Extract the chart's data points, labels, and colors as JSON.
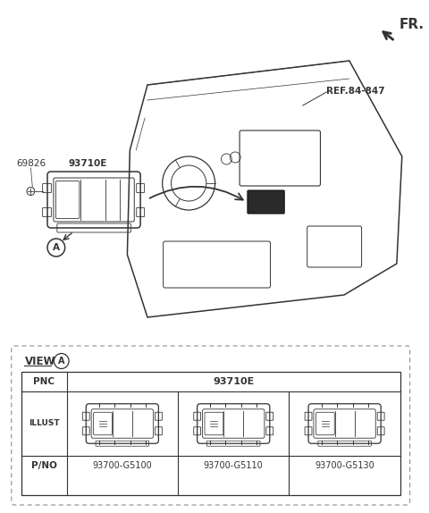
{
  "bg_color": "#ffffff",
  "line_color": "#333333",
  "fig_width": 4.8,
  "fig_height": 5.74,
  "fr_label": "FR.",
  "ref_label": "REF.84-847",
  "part_69826": "69826",
  "part_93710E": "93710E",
  "view_label": "VIEW",
  "table_pnc": "PNC",
  "table_pnc_val": "93710E",
  "table_illust": "ILLUST",
  "table_pno": "P/NO",
  "pno_values": [
    "93700-G5100",
    "93700-G5110",
    "93700-G5130"
  ]
}
